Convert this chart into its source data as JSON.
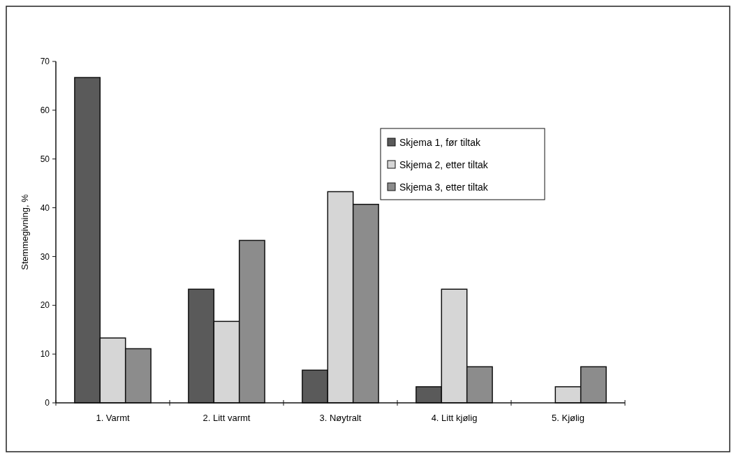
{
  "chart_data": {
    "type": "bar",
    "ylabel": "Stemmegivning, %",
    "categories": [
      "1. Varmt",
      "2. Litt varmt",
      "3. Nøytralt",
      "4. Litt kjølig",
      "5. Kjølig"
    ],
    "series": [
      {
        "name": "Skjema 1, før tiltak",
        "color": "#5a5a5a",
        "values": [
          66.7,
          23.3,
          6.7,
          3.3,
          0
        ]
      },
      {
        "name": "Skjema 2, etter tiltak",
        "color": "#d6d6d6",
        "values": [
          13.3,
          16.7,
          43.3,
          23.3,
          3.3
        ]
      },
      {
        "name": "Skjema 3, etter tiltak",
        "color": "#8c8c8c",
        "values": [
          11.1,
          33.3,
          40.7,
          7.4,
          7.4
        ]
      }
    ],
    "ylim": [
      0,
      70
    ],
    "yticks": [
      0,
      10,
      20,
      30,
      40,
      50,
      60,
      70
    ],
    "grid": false,
    "legend": "top right"
  }
}
